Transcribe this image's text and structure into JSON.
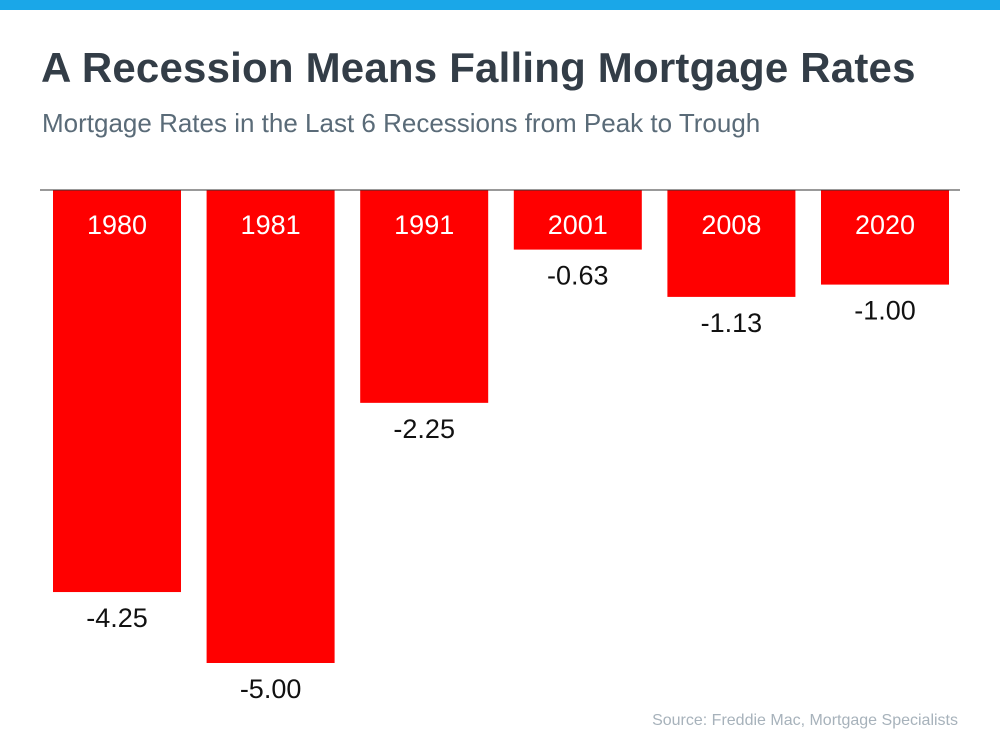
{
  "colors": {
    "accent_bar": "#1aa7e8",
    "bar_fill": "#ff0000",
    "title": "#333d47",
    "subtitle": "#5a6b78",
    "source": "#a7b2bb",
    "axis": "#333333"
  },
  "chart_data": {
    "type": "bar",
    "title": "A Recession Means Falling Mortgage Rates",
    "subtitle": "Mortgage Rates in the Last 6 Recessions from Peak to Trough",
    "categories": [
      "1980",
      "1981",
      "1991",
      "2001",
      "2008",
      "2020"
    ],
    "values": [
      -4.25,
      -5.0,
      -2.25,
      -0.63,
      -1.13,
      -1.0
    ],
    "value_labels": [
      "-4.25",
      "-5.00",
      "-2.25",
      "-0.63",
      "-1.13",
      "-1.00"
    ],
    "xlabel": "",
    "ylabel": "",
    "ylim": [
      -5,
      0
    ],
    "grid": false,
    "legend": "none"
  },
  "source": "Source: Freddie Mac, Mortgage Specialists"
}
